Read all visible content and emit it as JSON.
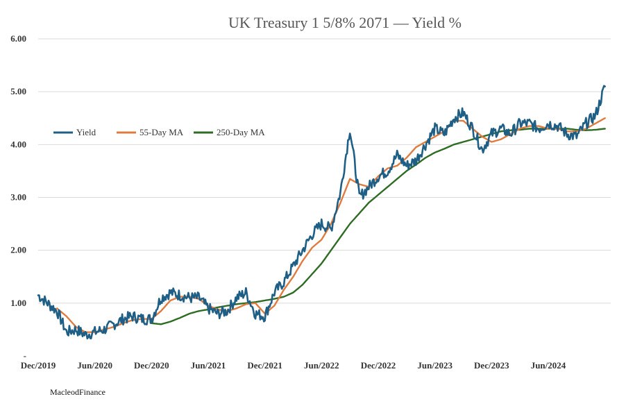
{
  "chart_data": {
    "type": "line",
    "title": "UK Treasury 1 5/8% 2071 — Yield %",
    "ylim": [
      0,
      6
    ],
    "y_ticks": [
      {
        "value": 0,
        "label": "-"
      },
      {
        "value": 1,
        "label": "1.00"
      },
      {
        "value": 2,
        "label": "2.00"
      },
      {
        "value": 3,
        "label": "3.00"
      },
      {
        "value": 4,
        "label": "4.00"
      },
      {
        "value": 5,
        "label": "5.00"
      },
      {
        "value": 6,
        "label": "6.00"
      }
    ],
    "x_ticks": [
      "Dec/2019",
      "Jun/2020",
      "Dec/2020",
      "Jun/2021",
      "Dec/2021",
      "Jun/2022",
      "Dec/2022",
      "Jun/2023",
      "Dec/2023",
      "Jun/2024"
    ],
    "grid": "horizontal",
    "legend_position": "left-middle",
    "series": [
      {
        "name": "Yield",
        "color": "#1f5f86",
        "x": [
          "2019-12",
          "2020-01",
          "2020-02",
          "2020-03",
          "2020-04",
          "2020-05",
          "2020-06",
          "2020-07",
          "2020-08",
          "2020-09",
          "2020-10",
          "2020-11",
          "2020-12",
          "2021-01",
          "2021-02",
          "2021-03",
          "2021-04",
          "2021-05",
          "2021-06",
          "2021-07",
          "2021-08",
          "2021-09",
          "2021-10",
          "2021-11",
          "2021-12",
          "2022-01",
          "2022-02",
          "2022-03",
          "2022-04",
          "2022-05",
          "2022-06",
          "2022-07",
          "2022-08",
          "2022-09",
          "2022-10",
          "2022-11",
          "2022-12",
          "2023-01",
          "2023-02",
          "2023-03",
          "2023-04",
          "2023-05",
          "2023-06",
          "2023-07",
          "2023-08",
          "2023-09",
          "2023-10",
          "2023-11",
          "2023-12",
          "2024-01",
          "2024-02",
          "2024-03",
          "2024-04",
          "2024-05",
          "2024-06",
          "2024-07",
          "2024-08",
          "2024-09",
          "2024-10",
          "2024-11",
          "2024-12"
        ],
        "values": [
          1.15,
          1.0,
          0.85,
          0.45,
          0.5,
          0.4,
          0.45,
          0.5,
          0.6,
          0.7,
          0.75,
          0.7,
          0.7,
          1.1,
          1.2,
          1.15,
          1.1,
          1.1,
          0.9,
          0.8,
          0.85,
          1.1,
          1.2,
          0.8,
          0.75,
          1.2,
          1.4,
          1.7,
          2.0,
          2.3,
          2.5,
          2.4,
          3.1,
          4.3,
          3.0,
          3.2,
          3.4,
          3.5,
          3.8,
          3.6,
          3.7,
          4.0,
          4.3,
          4.2,
          4.5,
          4.6,
          4.3,
          3.9,
          4.2,
          4.3,
          4.2,
          4.4,
          4.4,
          4.3,
          4.4,
          4.35,
          4.2,
          4.15,
          4.4,
          4.55,
          5.1
        ]
      },
      {
        "name": "55-Day MA",
        "color": "#e07b3f",
        "x": [
          "2020-02",
          "2020-03",
          "2020-04",
          "2020-05",
          "2020-06",
          "2020-07",
          "2020-08",
          "2020-09",
          "2020-10",
          "2020-11",
          "2020-12",
          "2021-01",
          "2021-02",
          "2021-03",
          "2021-04",
          "2021-05",
          "2021-06",
          "2021-07",
          "2021-08",
          "2021-09",
          "2021-10",
          "2021-11",
          "2021-12",
          "2022-01",
          "2022-02",
          "2022-03",
          "2022-04",
          "2022-05",
          "2022-06",
          "2022-07",
          "2022-08",
          "2022-09",
          "2022-10",
          "2022-11",
          "2022-12",
          "2023-01",
          "2023-02",
          "2023-03",
          "2023-04",
          "2023-05",
          "2023-06",
          "2023-07",
          "2023-08",
          "2023-09",
          "2023-10",
          "2023-11",
          "2023-12",
          "2024-01",
          "2024-02",
          "2024-03",
          "2024-04",
          "2024-05",
          "2024-06",
          "2024-07",
          "2024-08",
          "2024-09",
          "2024-10",
          "2024-11",
          "2024-12"
        ],
        "values": [
          0.9,
          0.75,
          0.55,
          0.45,
          0.45,
          0.5,
          0.55,
          0.62,
          0.68,
          0.7,
          0.7,
          0.85,
          1.05,
          1.12,
          1.12,
          1.08,
          0.95,
          0.88,
          0.85,
          0.9,
          0.98,
          1.0,
          0.8,
          0.95,
          1.25,
          1.5,
          1.8,
          2.05,
          2.2,
          2.5,
          2.9,
          3.35,
          3.25,
          3.2,
          3.4,
          3.55,
          3.6,
          3.75,
          3.95,
          4.05,
          4.15,
          4.25,
          4.45,
          4.45,
          4.3,
          4.15,
          4.05,
          4.1,
          4.2,
          4.3,
          4.35,
          4.35,
          4.3,
          4.3,
          4.25,
          4.25,
          4.3,
          4.4,
          4.5
        ]
      },
      {
        "name": "250-Day MA",
        "color": "#2e6b23",
        "x": [
          "2020-12",
          "2021-01",
          "2021-02",
          "2021-03",
          "2021-04",
          "2021-05",
          "2021-06",
          "2021-07",
          "2021-08",
          "2021-09",
          "2021-10",
          "2021-11",
          "2021-12",
          "2022-01",
          "2022-02",
          "2022-03",
          "2022-04",
          "2022-05",
          "2022-06",
          "2022-07",
          "2022-08",
          "2022-09",
          "2022-10",
          "2022-11",
          "2022-12",
          "2023-01",
          "2023-02",
          "2023-03",
          "2023-04",
          "2023-05",
          "2023-06",
          "2023-07",
          "2023-08",
          "2023-09",
          "2023-10",
          "2023-11",
          "2023-12",
          "2024-01",
          "2024-02",
          "2024-03",
          "2024-04",
          "2024-05",
          "2024-06",
          "2024-07",
          "2024-08",
          "2024-09",
          "2024-10",
          "2024-11",
          "2024-12"
        ],
        "values": [
          0.62,
          0.6,
          0.65,
          0.72,
          0.8,
          0.85,
          0.88,
          0.92,
          0.95,
          0.98,
          1.0,
          1.02,
          1.05,
          1.08,
          1.12,
          1.2,
          1.35,
          1.55,
          1.75,
          2.0,
          2.25,
          2.5,
          2.7,
          2.9,
          3.05,
          3.2,
          3.35,
          3.5,
          3.62,
          3.75,
          3.85,
          3.92,
          4.0,
          4.05,
          4.1,
          4.15,
          4.2,
          4.25,
          4.27,
          4.28,
          4.3,
          4.3,
          4.3,
          4.3,
          4.3,
          4.28,
          4.27,
          4.28,
          4.3
        ]
      }
    ]
  },
  "credit": "MacleodFinance"
}
